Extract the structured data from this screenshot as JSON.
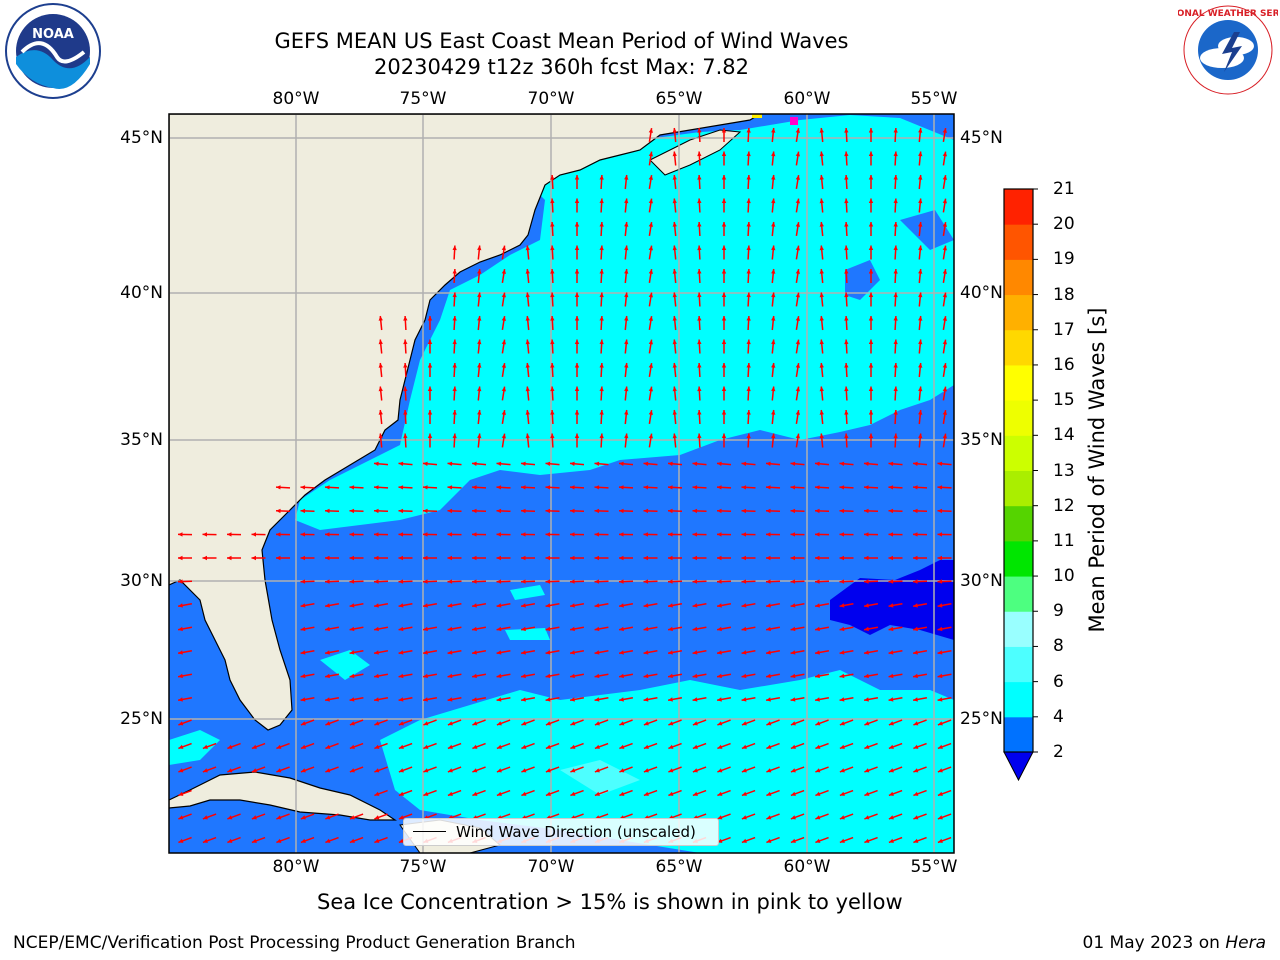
{
  "header": {
    "title_line1": "GEFS MEAN US East Coast Mean Period of Wind Waves",
    "title_line2": "20230429 t12z 360h fcst   Max: 7.82"
  },
  "logos": {
    "left": {
      "icon": "noaa-logo",
      "text": "NOAA"
    },
    "right": {
      "icon": "national-weather-service-logo",
      "text": "NATIONAL WEATHER SERVICE"
    }
  },
  "axes": {
    "lon_labels": [
      "80°W",
      "75°W",
      "70°W",
      "65°W",
      "60°W",
      "55°W"
    ],
    "lat_labels": [
      "45°N",
      "40°N",
      "35°N",
      "30°N",
      "25°N"
    ]
  },
  "legend": {
    "label": "Wind Wave Direction (unscaled)"
  },
  "colorbar": {
    "title": "Mean Period of Wind Waves [s]",
    "ticks": [
      "2",
      "4",
      "6",
      "8",
      "9",
      "10",
      "11",
      "12",
      "13",
      "14",
      "15",
      "16",
      "17",
      "18",
      "19",
      "20",
      "21"
    ],
    "colors": [
      "#0072ff",
      "#00ffff",
      "#4dffff",
      "#99ffff",
      "#4dff80",
      "#00e600",
      "#55d400",
      "#aaee00",
      "#ccff00",
      "#eeff00",
      "#ffff00",
      "#ffd800",
      "#ffb000",
      "#ff8800",
      "#ff5500",
      "#ff2200",
      "#ff0000"
    ],
    "under_color": "#0000ee"
  },
  "map_colors": {
    "land": "#efedde",
    "wave_2_4": "#1f77ff",
    "wave_4_6": "#00ffff",
    "wave_below_2": "#0000ee",
    "arrows": "#ff0000",
    "grid": "#b0b0b0"
  },
  "subnote": "Sea Ice Concentration > 15% is shown in pink to yellow",
  "footer": {
    "left": "NCEP/EMC/Verification Post Processing Product Generation Branch",
    "right_prefix": "01 May 2023 on ",
    "right_machine": "Hera"
  }
}
